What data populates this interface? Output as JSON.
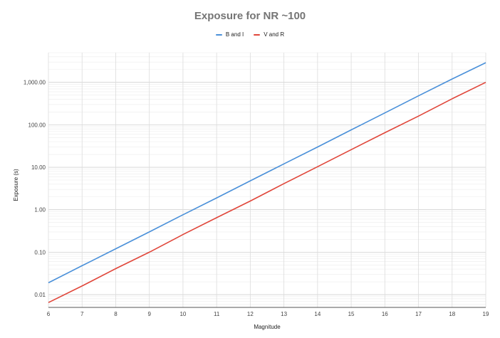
{
  "chart_data": {
    "type": "line",
    "title": "Exposure for NR ~100",
    "xlabel": "Magnitude",
    "ylabel": "Exposure (s)",
    "x": [
      6,
      7,
      8,
      9,
      10,
      11,
      12,
      13,
      14,
      15,
      16,
      17,
      18,
      19
    ],
    "xlim": [
      6,
      19
    ],
    "ylim": [
      0.005,
      5000
    ],
    "yscale": "log",
    "x_tick_labels": [
      "6",
      "7",
      "8",
      "9",
      "10",
      "11",
      "12",
      "13",
      "14",
      "15",
      "16",
      "17",
      "18",
      "19"
    ],
    "y_ticks": [
      0.01,
      0.1,
      1,
      10,
      100,
      1000
    ],
    "y_tick_labels": [
      "0.01",
      "0.10",
      "1.00",
      "10.00",
      "100.00",
      "1,000.00"
    ],
    "grid": true,
    "legend_position": "top-center",
    "series": [
      {
        "name": "B and I",
        "color": "#4a90d9",
        "values": [
          0.019,
          0.048,
          0.12,
          0.3,
          0.76,
          1.9,
          4.8,
          12.0,
          30.0,
          76.0,
          190.0,
          480.0,
          1200.0,
          2900.0
        ]
      },
      {
        "name": "V and R",
        "color": "#e0463a",
        "values": [
          0.0065,
          0.016,
          0.041,
          0.1,
          0.26,
          0.65,
          1.6,
          4.1,
          10.3,
          26.0,
          65.0,
          160.0,
          410.0,
          1000.0
        ]
      }
    ]
  }
}
